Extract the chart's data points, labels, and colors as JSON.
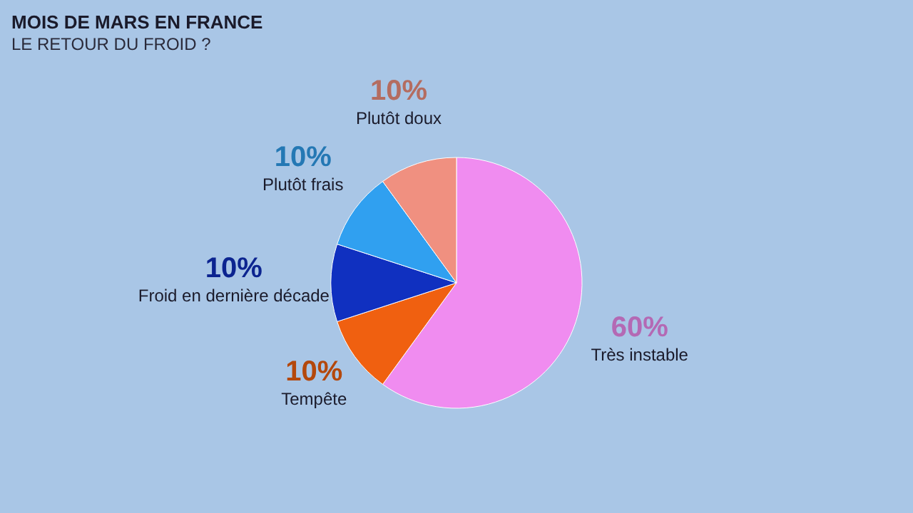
{
  "chart_data": {
    "type": "pie",
    "title": "MOIS DE MARS EN FRANCE",
    "subtitle": "LE RETOUR DU FROID ?",
    "categories": [
      "Très instable",
      "Tempête",
      "Froid en dernière décade",
      "Plutôt frais",
      "Plutôt doux"
    ],
    "values": [
      60,
      10,
      10,
      10,
      10
    ],
    "colors": [
      "#f08cf0",
      "#f06010",
      "#1030c0",
      "#30a0f0",
      "#f09080"
    ],
    "value_labels": [
      "60%",
      "10%",
      "10%",
      "10%",
      "10%"
    ],
    "legend": false
  }
}
